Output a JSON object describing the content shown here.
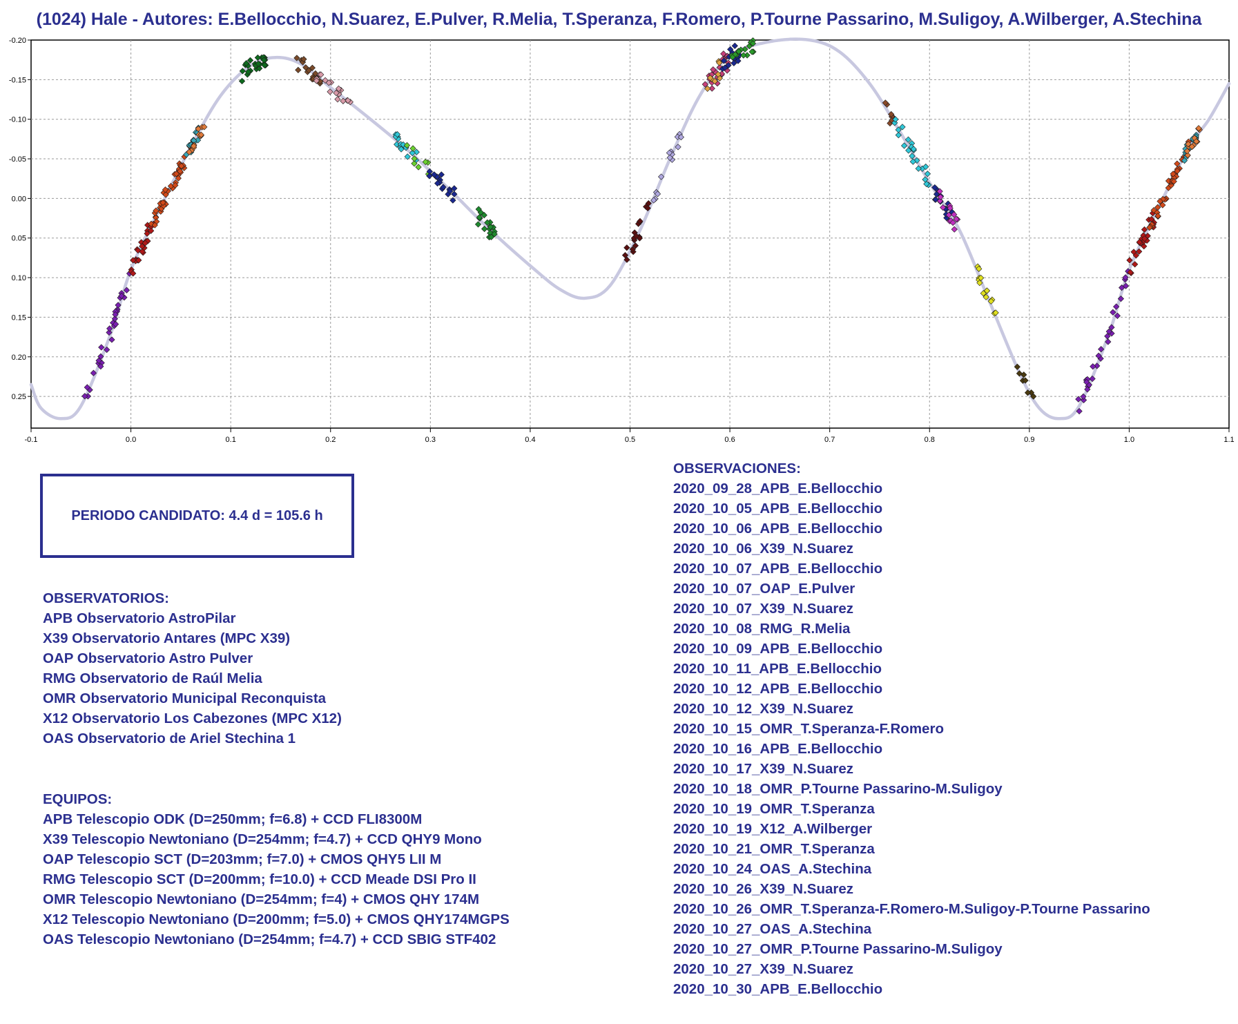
{
  "title": "(1024) Hale - Autores: E.Bellocchio, N.Suarez, E.Pulver, R.Melia, T.Speranza, F.Romero, P.Tourne Passarino, M.Suligoy, A.Wilberger, A.Stechina",
  "period_text": "PERIODO CANDIDATO: 4.4 d = 105.6 h",
  "observatorios": {
    "heading": "OBSERVATORIOS:",
    "items": [
      "APB Observatorio AstroPilar",
      "X39 Observatorio Antares (MPC X39)",
      "OAP Observatorio Astro Pulver",
      "RMG Observatorio de Raúl Melia",
      "OMR Observatorio Municipal Reconquista",
      "X12 Observatorio Los Cabezones (MPC X12)",
      "OAS Observatorio de Ariel Stechina 1"
    ]
  },
  "equipos": {
    "heading": "EQUIPOS:",
    "items": [
      "APB Telescopio ODK (D=250mm; f=6.8) + CCD FLI8300M",
      "X39 Telescopio Newtoniano (D=254mm; f=4.7) + CCD QHY9 Mono",
      "OAP Telescopio SCT (D=203mm; f=7.0) + CMOS QHY5 LII M",
      "RMG Telescopio SCT (D=200mm; f=10.0) + CCD Meade DSI Pro II",
      "OMR Telescopio Newtoniano (D=254mm; f=4) + CMOS QHY 174M",
      "X12 Telescopio Newtoniano (D=200mm; f=5.0) + CMOS QHY174MGPS",
      "OAS Telescopio Newtoniano (D=254mm; f=4.7) + CCD SBIG STF402"
    ]
  },
  "observaciones": {
    "heading": "OBSERVACIONES:",
    "items": [
      "2020_09_28_APB_E.Bellocchio",
      "2020_10_05_APB_E.Bellocchio",
      "2020_10_06_APB_E.Bellocchio",
      "2020_10_06_X39_N.Suarez",
      "2020_10_07_APB_E.Bellocchio",
      "2020_10_07_OAP_E.Pulver",
      "2020_10_07_X39_N.Suarez",
      "2020_10_08_RMG_R.Melia",
      "2020_10_09_APB_E.Bellocchio",
      "2020_10_11_APB_E.Bellocchio",
      "2020_10_12_APB_E.Bellocchio",
      "2020_10_12_X39_N.Suarez",
      "2020_10_15_OMR_T.Speranza-F.Romero",
      "2020_10_16_APB_E.Bellocchio",
      "2020_10_17_X39_N.Suarez",
      "2020_10_18_OMR_P.Tourne Passarino-M.Suligoy",
      "2020_10_19_OMR_T.Speranza",
      "2020_10_19_X12_A.Wilberger",
      "2020_10_21_OMR_T.Speranza",
      "2020_10_24_OAS_A.Stechina",
      "2020_10_26_X39_N.Suarez",
      "2020_10_26_OMR_T.Speranza-F.Romero-M.Suligoy-P.Tourne Passarino",
      "2020_10_27_OAS_A.Stechina",
      "2020_10_27_OMR_P.Tourne Passarino-M.Suligoy",
      "2020_10_27_X39_N.Suarez",
      "2020_10_30_APB_E.Bellocchio"
    ]
  },
  "chart_data": {
    "type": "scatter",
    "xlim": [
      -0.1,
      1.1
    ],
    "ylim": [
      0.29,
      -0.2
    ],
    "y_inverted": true,
    "x_ticks": [
      "-0.1",
      "0.0",
      "0.1",
      "0.2",
      "0.3",
      "0.4",
      "0.5",
      "0.6",
      "0.7",
      "0.8",
      "0.9",
      "1.0",
      "1.1"
    ],
    "y_ticks": [
      "-0.20",
      "-0.15",
      "-0.10",
      "-0.05",
      "0.00",
      "0.05",
      "0.10",
      "0.15",
      "0.20",
      "0.25"
    ],
    "grid": true,
    "fit_color": "#c8c8e0",
    "fit_curve": [
      [
        -0.1,
        0.235
      ],
      [
        -0.09,
        0.265
      ],
      [
        -0.07,
        0.278
      ],
      [
        -0.05,
        0.262
      ],
      [
        -0.02,
        0.17
      ],
      [
        0.0,
        0.09
      ],
      [
        0.03,
        0.01
      ],
      [
        0.06,
        -0.065
      ],
      [
        0.09,
        -0.13
      ],
      [
        0.12,
        -0.168
      ],
      [
        0.145,
        -0.178
      ],
      [
        0.17,
        -0.17
      ],
      [
        0.2,
        -0.14
      ],
      [
        0.24,
        -0.1
      ],
      [
        0.28,
        -0.058
      ],
      [
        0.32,
        -0.01
      ],
      [
        0.36,
        0.04
      ],
      [
        0.4,
        0.085
      ],
      [
        0.43,
        0.115
      ],
      [
        0.455,
        0.126
      ],
      [
        0.48,
        0.11
      ],
      [
        0.51,
        0.04
      ],
      [
        0.54,
        -0.05
      ],
      [
        0.57,
        -0.13
      ],
      [
        0.6,
        -0.18
      ],
      [
        0.64,
        -0.198
      ],
      [
        0.68,
        -0.2
      ],
      [
        0.71,
        -0.185
      ],
      [
        0.74,
        -0.145
      ],
      [
        0.77,
        -0.085
      ],
      [
        0.8,
        -0.02
      ],
      [
        0.83,
        0.04
      ],
      [
        0.86,
        0.13
      ],
      [
        0.89,
        0.22
      ],
      [
        0.91,
        0.265
      ],
      [
        0.93,
        0.278
      ],
      [
        0.95,
        0.262
      ],
      [
        0.98,
        0.17
      ],
      [
        1.0,
        0.09
      ],
      [
        1.03,
        0.01
      ],
      [
        1.06,
        -0.065
      ],
      [
        1.08,
        -0.1
      ],
      [
        1.1,
        -0.145
      ]
    ],
    "point_groups": [
      {
        "color": "#7a1fb0",
        "x": [
          -0.052,
          0.0
        ],
        "y_offset": 0.012,
        "count": 30
      },
      {
        "color": "#b01818",
        "x": [
          0.0,
          0.025
        ],
        "y_offset": 0.012,
        "count": 25
      },
      {
        "color": "#d24a1a",
        "x": [
          0.02,
          0.062
        ],
        "y_offset": 0.01,
        "count": 40
      },
      {
        "color": "#3aa8b8",
        "x": [
          0.055,
          0.068
        ],
        "y_offset": 0.008,
        "count": 15
      },
      {
        "color": "#e07a3a",
        "x": [
          0.058,
          0.075
        ],
        "y_offset": 0.008,
        "count": 12
      },
      {
        "color": "#0e6a1e",
        "x": [
          0.11,
          0.14
        ],
        "y_offset": 0.009,
        "count": 25
      },
      {
        "color": "#7a4a2a",
        "x": [
          0.165,
          0.19
        ],
        "y_offset": 0.009,
        "count": 18
      },
      {
        "color": "#d89aa8",
        "x": [
          0.185,
          0.22
        ],
        "y_offset": 0.008,
        "count": 18
      },
      {
        "color": "#30c8d8",
        "x": [
          0.265,
          0.29
        ],
        "y_offset": 0.01,
        "count": 15
      },
      {
        "color": "#6ad030",
        "x": [
          0.275,
          0.3
        ],
        "y_offset": 0.01,
        "count": 8
      },
      {
        "color": "#1a2890",
        "x": [
          0.295,
          0.325
        ],
        "y_offset": 0.01,
        "count": 18
      },
      {
        "color": "#1e8a2e",
        "x": [
          0.345,
          0.365
        ],
        "y_offset": 0.012,
        "count": 18
      },
      {
        "color": "#5a1010",
        "x": [
          0.495,
          0.52
        ],
        "y_offset": 0.012,
        "count": 18
      },
      {
        "color": "#b0a8e0",
        "x": [
          0.52,
          0.555
        ],
        "y_offset": 0.01,
        "count": 14
      },
      {
        "color": "#c8407a",
        "x": [
          0.575,
          0.6
        ],
        "y_offset": 0.014,
        "count": 20
      },
      {
        "color": "#e0a040",
        "x": [
          0.575,
          0.59
        ],
        "y_offset": 0.012,
        "count": 8
      },
      {
        "color": "#1a2890",
        "x": [
          0.59,
          0.61
        ],
        "y_offset": 0.012,
        "count": 14
      },
      {
        "color": "#2a9a2a",
        "x": [
          0.6,
          0.625
        ],
        "y_offset": 0.01,
        "count": 16
      },
      {
        "color": "#8a4a2a",
        "x": [
          0.755,
          0.765
        ],
        "y_offset": 0.01,
        "count": 8
      },
      {
        "color": "#30c8d8",
        "x": [
          0.765,
          0.8
        ],
        "y_offset": 0.012,
        "count": 22
      },
      {
        "color": "#1a2890",
        "x": [
          0.805,
          0.825
        ],
        "y_offset": 0.012,
        "count": 14
      },
      {
        "color": "#c030c0",
        "x": [
          0.81,
          0.83
        ],
        "y_offset": 0.012,
        "count": 14
      },
      {
        "color": "#e0e020",
        "x": [
          0.848,
          0.868
        ],
        "y_offset": 0.01,
        "count": 14
      },
      {
        "color": "#4a3a10",
        "x": [
          0.885,
          0.905
        ],
        "y_offset": 0.008,
        "count": 8
      },
      {
        "color": "#7a1fb0",
        "x": [
          0.948,
          1.0
        ],
        "y_offset": 0.012,
        "count": 30
      },
      {
        "color": "#b01818",
        "x": [
          1.0,
          1.025
        ],
        "y_offset": 0.012,
        "count": 25
      },
      {
        "color": "#d24a1a",
        "x": [
          1.02,
          1.062
        ],
        "y_offset": 0.01,
        "count": 40
      },
      {
        "color": "#3aa8b8",
        "x": [
          1.055,
          1.068
        ],
        "y_offset": 0.008,
        "count": 15
      },
      {
        "color": "#e07a3a",
        "x": [
          1.058,
          1.075
        ],
        "y_offset": 0.008,
        "count": 12
      }
    ]
  }
}
